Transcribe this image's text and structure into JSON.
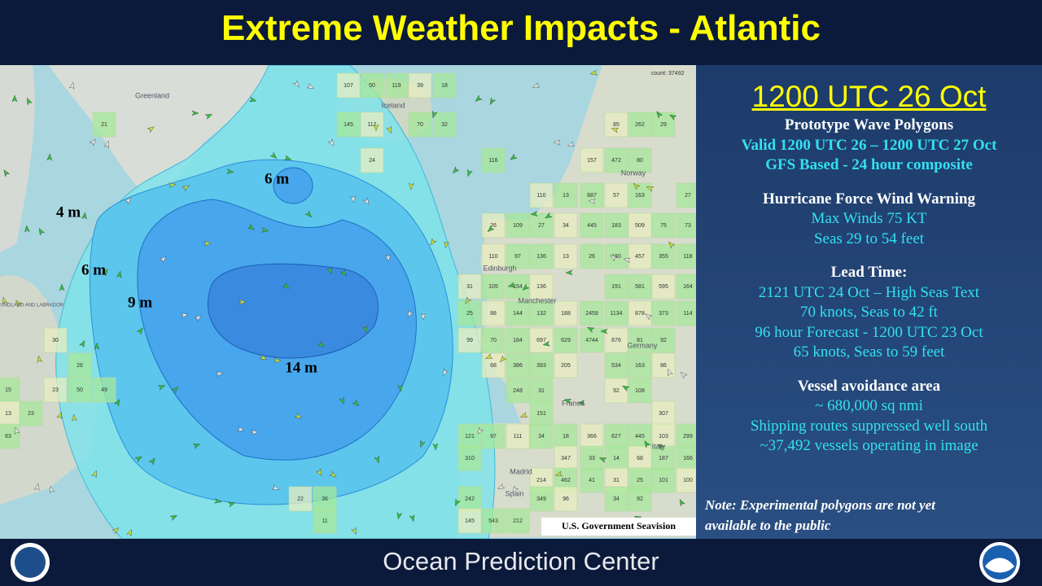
{
  "header": {
    "title": "Extreme Weather Impacts - Atlantic"
  },
  "panel": {
    "date": "1200 UTC 26 Oct",
    "sections": [
      {
        "heading": "Prototype Wave Polygons",
        "lines": [
          "Valid  1200 UTC 26 – 1200 UTC 27 Oct",
          "GFS Based - 24 hour composite"
        ]
      },
      {
        "heading": "Hurricane Force Wind Warning",
        "lines": [
          "Max Winds 75 KT",
          "Seas 29 to 54 feet"
        ]
      },
      {
        "heading": "Lead Time:",
        "lines": [
          "2121 UTC 24 Oct – High Seas Text",
          "70 knots, Seas to 42  ft",
          "96 hour Forecast  - 1200 UTC 23 Oct",
          "65 knots, Seas to 59 feet"
        ]
      },
      {
        "heading": "Vessel avoidance area",
        "lines": [
          "~ 680,000 sq nmi",
          "Shipping routes suppressed well south",
          "~37,492 vessels operating in image"
        ]
      }
    ],
    "note": [
      "Note: Experimental polygons are not yet",
      "available to the public"
    ]
  },
  "map": {
    "contour_labels": [
      "6 m",
      "4 m",
      "6 m",
      "9 m",
      "14 m"
    ],
    "place_names": [
      "Greenland",
      "Iceland",
      "Norway",
      "Edinburgh",
      "Manchester",
      "Germany",
      "France",
      "Spain",
      "Madrid",
      "Italy",
      "NEWFOUNDLAND AND LABRADOR"
    ],
    "count": "count: 37492",
    "credit": "U.S. Government  Seavision",
    "grid_cells": [
      "107",
      "50",
      "119",
      "39",
      "18",
      "145",
      "112",
      "70",
      "32",
      "24",
      "21",
      "116",
      "157",
      "472",
      "80",
      "85",
      "262",
      "29",
      "110",
      "13",
      "687",
      "57",
      "163",
      "27",
      "26",
      "109",
      "27",
      "34",
      "445",
      "183",
      "509",
      "75",
      "73",
      "110",
      "97",
      "136",
      "13",
      "26",
      "180",
      "457",
      "355",
      "118",
      "31",
      "105",
      "154",
      "136",
      "191",
      "581",
      "595",
      "164",
      "25",
      "88",
      "144",
      "132",
      "188",
      "2459",
      "1134",
      "878",
      "373",
      "114",
      "99",
      "70",
      "184",
      "697",
      "629",
      "4744",
      "876",
      "81",
      "92",
      "68",
      "386",
      "393",
      "205",
      "534",
      "163",
      "86",
      "248",
      "31",
      "92",
      "108",
      "151",
      "307",
      "121",
      "97",
      "111",
      "34",
      "18",
      "366",
      "627",
      "445",
      "103",
      "299",
      "310",
      "347",
      "33",
      "14",
      "68",
      "187",
      "166",
      "214",
      "462",
      "41",
      "31",
      "25",
      "101",
      "100",
      "242",
      "349",
      "96",
      "34",
      "92",
      "145",
      "543",
      "212",
      "30",
      "26",
      "15",
      "23",
      "50",
      "49",
      "13",
      "23",
      "63",
      "22",
      "36",
      "11"
    ]
  },
  "footer": {
    "title": "Ocean Prediction Center"
  }
}
